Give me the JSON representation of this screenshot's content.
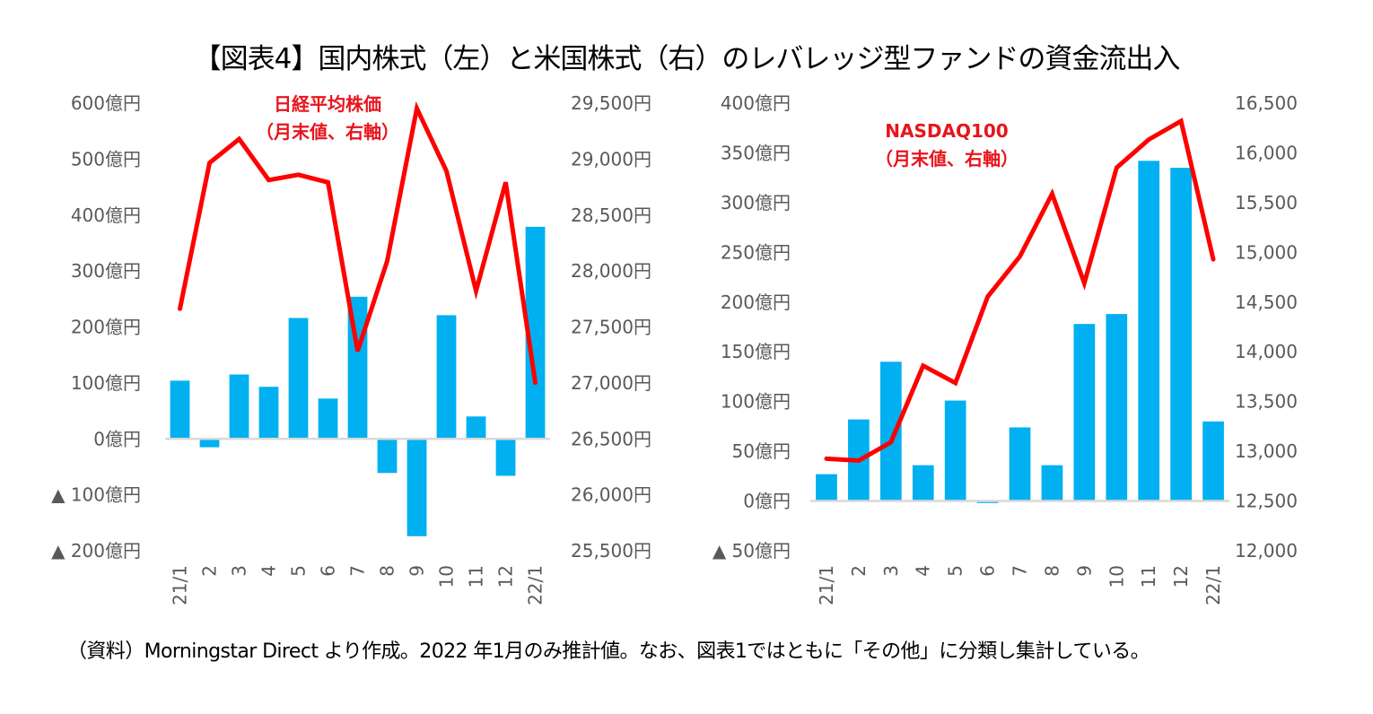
{
  "title": "【図表4】国内株式（左）と米国株式（右）のレバレッジ型ファンドの資金流出入",
  "footnote": "（資料）Morningstar Direct より作成。2022 年1月のみ推計値。なお、図表1ではともに「その他」に分類し集計している。",
  "colors": {
    "bar": "#00b0f0",
    "line": "#ff0000",
    "axis": "#d9d9d9",
    "tick": "#595959",
    "annotation": "#e8141c"
  },
  "chart_data": [
    {
      "type": "bar+line",
      "title": "国内株式",
      "categories": [
        "21/1",
        "2",
        "3",
        "4",
        "5",
        "6",
        "7",
        "8",
        "9",
        "10",
        "11",
        "12",
        "22/1"
      ],
      "series": [
        {
          "name": "資金流出入",
          "axis": "left",
          "type": "bar",
          "values": [
            104,
            -15,
            115,
            93,
            216,
            72,
            254,
            -61,
            -174,
            221,
            40,
            -66,
            379
          ]
        },
        {
          "name": "日経平均株価（月末値、右軸）",
          "axis": "right",
          "type": "line",
          "values": [
            27663,
            28966,
            29179,
            28813,
            28860,
            28792,
            27284,
            28090,
            29453,
            28893,
            27822,
            28792,
            27002
          ]
        }
      ],
      "left_axis": {
        "range": [
          -200,
          600
        ],
        "step": 100,
        "ticks": [
          "600億円",
          "500億円",
          "400億円",
          "300億円",
          "200億円",
          "100億円",
          "0億円",
          "▲ 100億円",
          "▲ 200億円"
        ]
      },
      "right_axis": {
        "range": [
          25500,
          29500
        ],
        "step": 500,
        "ticks": [
          "29,500円",
          "29,000円",
          "28,500円",
          "28,000円",
          "27,500円",
          "27,000円",
          "26,500円",
          "26,000円",
          "25,500円"
        ]
      },
      "annotation": [
        "日経平均株価",
        "（月末値、右軸）"
      ],
      "grid": false,
      "legend": "none"
    },
    {
      "type": "bar+line",
      "title": "米国株式",
      "categories": [
        "21/1",
        "2",
        "3",
        "4",
        "5",
        "6",
        "7",
        "8",
        "9",
        "10",
        "11",
        "12",
        "22/1"
      ],
      "series": [
        {
          "name": "資金流出入",
          "axis": "left",
          "type": "bar",
          "values": [
            27,
            82,
            140,
            36,
            101,
            -2,
            74,
            36,
            178,
            188,
            342,
            335,
            80
          ]
        },
        {
          "name": "NASDAQ100（月末値、右軸）",
          "axis": "right",
          "type": "line",
          "values": [
            12925,
            12906,
            13091,
            13860,
            13687,
            14554,
            14959,
            15588,
            14690,
            15851,
            16135,
            16320,
            14930
          ]
        }
      ],
      "left_axis": {
        "range": [
          -50,
          400
        ],
        "step": 50,
        "ticks": [
          "400億円",
          "350億円",
          "300億円",
          "250億円",
          "200億円",
          "150億円",
          "100億円",
          "50億円",
          "0億円",
          "▲ 50億円"
        ]
      },
      "right_axis": {
        "range": [
          12000,
          16500
        ],
        "step": 500,
        "ticks": [
          "16,500",
          "16,000",
          "15,500",
          "15,000",
          "14,500",
          "14,000",
          "13,500",
          "13,000",
          "12,500",
          "12,000"
        ]
      },
      "annotation": [
        "NASDAQ100",
        "（月末値、右軸）"
      ],
      "grid": false,
      "legend": "none"
    }
  ]
}
